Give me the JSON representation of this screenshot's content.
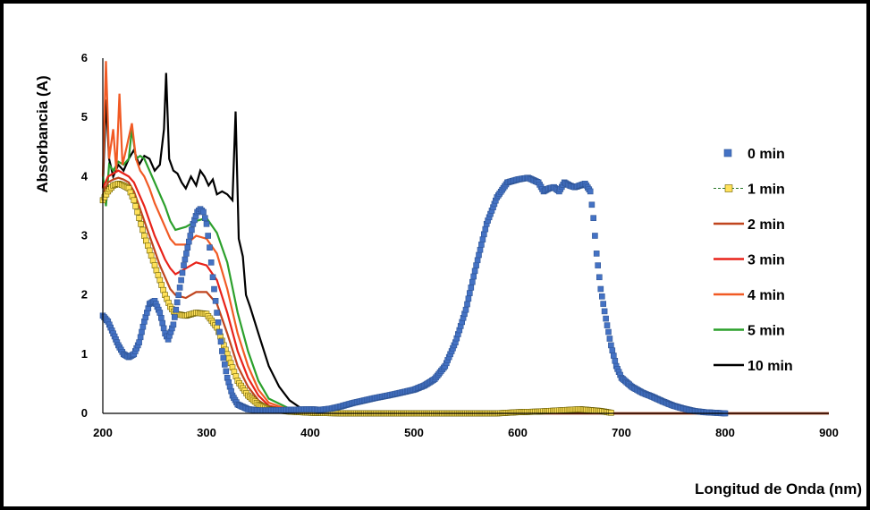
{
  "chart_data": {
    "type": "scatter",
    "xlabel": "Longitud de Onda (nm)",
    "ylabel": "Absorbancia (A)",
    "xlim": [
      200,
      900
    ],
    "ylim": [
      0,
      6
    ],
    "xticks": [
      "200",
      "300",
      "400",
      "500",
      "600",
      "700",
      "800",
      "900"
    ],
    "yticks": [
      "0",
      "1",
      "2",
      "3",
      "4",
      "5",
      "6"
    ],
    "grid": false,
    "legend_position": "right",
    "series": [
      {
        "name": "0 min",
        "style": "markers",
        "color": "#4472C4",
        "points": [
          [
            200,
            1.65
          ],
          [
            205,
            1.55
          ],
          [
            210,
            1.35
          ],
          [
            215,
            1.15
          ],
          [
            220,
            1.0
          ],
          [
            225,
            0.95
          ],
          [
            230,
            1.0
          ],
          [
            235,
            1.2
          ],
          [
            240,
            1.55
          ],
          [
            245,
            1.85
          ],
          [
            250,
            1.9
          ],
          [
            255,
            1.7
          ],
          [
            260,
            1.35
          ],
          [
            263,
            1.25
          ],
          [
            268,
            1.5
          ],
          [
            273,
            2.0
          ],
          [
            278,
            2.5
          ],
          [
            283,
            2.9
          ],
          [
            287,
            3.2
          ],
          [
            291,
            3.4
          ],
          [
            294,
            3.45
          ],
          [
            297,
            3.4
          ],
          [
            300,
            3.2
          ],
          [
            303,
            2.8
          ],
          [
            306,
            2.3
          ],
          [
            310,
            1.7
          ],
          [
            315,
            1.05
          ],
          [
            320,
            0.6
          ],
          [
            325,
            0.3
          ],
          [
            330,
            0.15
          ],
          [
            340,
            0.07
          ],
          [
            350,
            0.05
          ],
          [
            360,
            0.05
          ],
          [
            380,
            0.06
          ],
          [
            400,
            0.07
          ],
          [
            410,
            0.06
          ],
          [
            420,
            0.08
          ],
          [
            430,
            0.12
          ],
          [
            440,
            0.17
          ],
          [
            460,
            0.25
          ],
          [
            480,
            0.32
          ],
          [
            500,
            0.4
          ],
          [
            510,
            0.47
          ],
          [
            520,
            0.58
          ],
          [
            530,
            0.8
          ],
          [
            540,
            1.2
          ],
          [
            550,
            1.75
          ],
          [
            560,
            2.5
          ],
          [
            570,
            3.2
          ],
          [
            580,
            3.65
          ],
          [
            590,
            3.9
          ],
          [
            600,
            3.95
          ],
          [
            610,
            3.98
          ],
          [
            620,
            3.9
          ],
          [
            625,
            3.75
          ],
          [
            630,
            3.8
          ],
          [
            635,
            3.82
          ],
          [
            640,
            3.75
          ],
          [
            645,
            3.9
          ],
          [
            650,
            3.85
          ],
          [
            655,
            3.82
          ],
          [
            660,
            3.85
          ],
          [
            665,
            3.88
          ],
          [
            670,
            3.75
          ],
          [
            673,
            3.3
          ],
          [
            676,
            2.7
          ],
          [
            680,
            2.1
          ],
          [
            685,
            1.6
          ],
          [
            690,
            1.15
          ],
          [
            695,
            0.8
          ],
          [
            700,
            0.6
          ],
          [
            710,
            0.45
          ],
          [
            720,
            0.35
          ],
          [
            730,
            0.28
          ],
          [
            740,
            0.2
          ],
          [
            750,
            0.13
          ],
          [
            760,
            0.08
          ],
          [
            770,
            0.04
          ],
          [
            780,
            0.02
          ],
          [
            790,
            0.01
          ],
          [
            800,
            0.0
          ]
        ]
      },
      {
        "name": "1 min",
        "style": "line-markers",
        "color": "#FFE15A",
        "points": [
          [
            200,
            3.6
          ],
          [
            205,
            3.75
          ],
          [
            210,
            3.85
          ],
          [
            215,
            3.88
          ],
          [
            220,
            3.85
          ],
          [
            225,
            3.8
          ],
          [
            230,
            3.6
          ],
          [
            235,
            3.3
          ],
          [
            240,
            3.0
          ],
          [
            245,
            2.75
          ],
          [
            250,
            2.5
          ],
          [
            255,
            2.25
          ],
          [
            260,
            2.0
          ],
          [
            265,
            1.8
          ],
          [
            270,
            1.68
          ],
          [
            280,
            1.65
          ],
          [
            290,
            1.7
          ],
          [
            300,
            1.68
          ],
          [
            310,
            1.45
          ],
          [
            320,
            1.0
          ],
          [
            330,
            0.55
          ],
          [
            340,
            0.3
          ],
          [
            350,
            0.15
          ],
          [
            360,
            0.07
          ],
          [
            380,
            0.03
          ],
          [
            400,
            0.01
          ],
          [
            430,
            0.0
          ],
          [
            580,
            0.0
          ],
          [
            600,
            0.02
          ],
          [
            620,
            0.03
          ],
          [
            640,
            0.05
          ],
          [
            660,
            0.07
          ],
          [
            680,
            0.04
          ],
          [
            690,
            0.01
          ]
        ]
      },
      {
        "name": "2 min",
        "style": "line",
        "color": "#C0451E",
        "points": [
          [
            200,
            3.7
          ],
          [
            205,
            3.9
          ],
          [
            210,
            3.95
          ],
          [
            215,
            3.98
          ],
          [
            220,
            3.95
          ],
          [
            225,
            3.9
          ],
          [
            230,
            3.75
          ],
          [
            235,
            3.5
          ],
          [
            240,
            3.25
          ],
          [
            245,
            3.0
          ],
          [
            250,
            2.75
          ],
          [
            255,
            2.5
          ],
          [
            260,
            2.3
          ],
          [
            265,
            2.1
          ],
          [
            270,
            2.0
          ],
          [
            280,
            1.95
          ],
          [
            290,
            2.05
          ],
          [
            300,
            2.05
          ],
          [
            310,
            1.85
          ],
          [
            320,
            1.35
          ],
          [
            330,
            0.8
          ],
          [
            340,
            0.45
          ],
          [
            350,
            0.22
          ],
          [
            360,
            0.1
          ],
          [
            380,
            0.04
          ],
          [
            400,
            0.01
          ],
          [
            420,
            0.0
          ],
          [
            900,
            0.0
          ]
        ]
      },
      {
        "name": "3 min",
        "style": "line",
        "color": "#E8231A",
        "points": [
          [
            200,
            3.8
          ],
          [
            205,
            4.0
          ],
          [
            210,
            4.05
          ],
          [
            215,
            4.1
          ],
          [
            220,
            4.05
          ],
          [
            225,
            4.0
          ],
          [
            230,
            3.9
          ],
          [
            235,
            3.7
          ],
          [
            240,
            3.5
          ],
          [
            245,
            3.25
          ],
          [
            250,
            3.0
          ],
          [
            255,
            2.8
          ],
          [
            260,
            2.6
          ],
          [
            265,
            2.45
          ],
          [
            270,
            2.35
          ],
          [
            280,
            2.45
          ],
          [
            290,
            2.55
          ],
          [
            300,
            2.5
          ],
          [
            310,
            2.25
          ],
          [
            320,
            1.7
          ],
          [
            330,
            1.05
          ],
          [
            340,
            0.6
          ],
          [
            350,
            0.3
          ],
          [
            360,
            0.13
          ],
          [
            380,
            0.05
          ],
          [
            400,
            0.02
          ],
          [
            420,
            0.0
          ],
          [
            900,
            0.0
          ]
        ]
      },
      {
        "name": "4 min",
        "style": "line",
        "color": "#F15A24",
        "points": [
          [
            200,
            4.0
          ],
          [
            203,
            5.95
          ],
          [
            206,
            4.3
          ],
          [
            210,
            4.8
          ],
          [
            213,
            4.1
          ],
          [
            216,
            5.4
          ],
          [
            219,
            4.2
          ],
          [
            223,
            4.5
          ],
          [
            228,
            4.9
          ],
          [
            232,
            4.3
          ],
          [
            236,
            4.1
          ],
          [
            240,
            4.0
          ],
          [
            245,
            3.8
          ],
          [
            250,
            3.55
          ],
          [
            255,
            3.35
          ],
          [
            260,
            3.15
          ],
          [
            265,
            2.95
          ],
          [
            270,
            2.85
          ],
          [
            280,
            2.85
          ],
          [
            290,
            3.0
          ],
          [
            300,
            2.95
          ],
          [
            310,
            2.7
          ],
          [
            320,
            2.1
          ],
          [
            330,
            1.35
          ],
          [
            340,
            0.8
          ],
          [
            350,
            0.4
          ],
          [
            360,
            0.18
          ],
          [
            380,
            0.06
          ],
          [
            400,
            0.02
          ],
          [
            420,
            0.0
          ],
          [
            900,
            0.0
          ]
        ]
      },
      {
        "name": "5 min",
        "style": "line",
        "color": "#2CA02C",
        "points": [
          [
            200,
            4.05
          ],
          [
            203,
            3.5
          ],
          [
            206,
            4.2
          ],
          [
            210,
            4.1
          ],
          [
            215,
            4.25
          ],
          [
            220,
            4.2
          ],
          [
            225,
            4.3
          ],
          [
            228,
            4.8
          ],
          [
            232,
            4.3
          ],
          [
            236,
            4.35
          ],
          [
            240,
            4.3
          ],
          [
            245,
            4.1
          ],
          [
            250,
            3.9
          ],
          [
            255,
            3.7
          ],
          [
            260,
            3.5
          ],
          [
            265,
            3.25
          ],
          [
            270,
            3.1
          ],
          [
            280,
            3.15
          ],
          [
            290,
            3.25
          ],
          [
            300,
            3.3
          ],
          [
            310,
            3.05
          ],
          [
            320,
            2.55
          ],
          [
            330,
            1.7
          ],
          [
            340,
            1.05
          ],
          [
            350,
            0.55
          ],
          [
            360,
            0.25
          ],
          [
            380,
            0.08
          ],
          [
            400,
            0.03
          ],
          [
            420,
            0.0
          ],
          [
            900,
            0.0
          ]
        ]
      },
      {
        "name": "10 min",
        "style": "line",
        "color": "#000000",
        "points": [
          [
            200,
            3.8
          ],
          [
            203,
            5.3
          ],
          [
            206,
            4.3
          ],
          [
            210,
            4.0
          ],
          [
            215,
            4.2
          ],
          [
            220,
            4.1
          ],
          [
            225,
            4.3
          ],
          [
            230,
            4.45
          ],
          [
            235,
            4.2
          ],
          [
            240,
            4.35
          ],
          [
            245,
            4.3
          ],
          [
            250,
            4.1
          ],
          [
            255,
            4.2
          ],
          [
            259,
            4.8
          ],
          [
            261,
            5.75
          ],
          [
            264,
            4.3
          ],
          [
            268,
            4.1
          ],
          [
            272,
            4.05
          ],
          [
            276,
            3.9
          ],
          [
            280,
            3.8
          ],
          [
            285,
            4.0
          ],
          [
            290,
            3.85
          ],
          [
            294,
            4.1
          ],
          [
            298,
            4.0
          ],
          [
            302,
            3.85
          ],
          [
            306,
            3.95
          ],
          [
            310,
            3.7
          ],
          [
            315,
            3.75
          ],
          [
            320,
            3.7
          ],
          [
            325,
            3.6
          ],
          [
            328,
            5.1
          ],
          [
            331,
            2.95
          ],
          [
            335,
            2.65
          ],
          [
            338,
            2.0
          ],
          [
            342,
            1.8
          ],
          [
            350,
            1.35
          ],
          [
            360,
            0.8
          ],
          [
            370,
            0.45
          ],
          [
            380,
            0.22
          ],
          [
            390,
            0.1
          ],
          [
            400,
            0.04
          ],
          [
            420,
            0.01
          ],
          [
            440,
            0.0
          ],
          [
            900,
            0.0
          ]
        ]
      }
    ]
  }
}
